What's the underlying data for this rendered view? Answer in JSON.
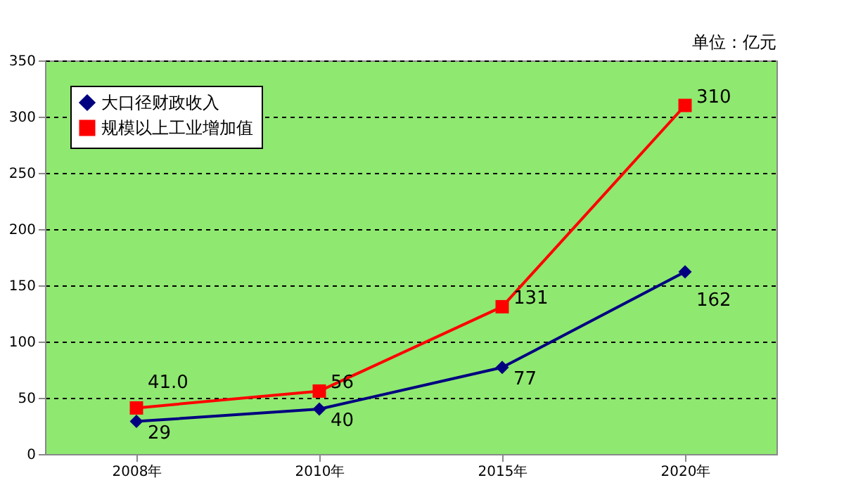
{
  "chart_data": {
    "type": "line",
    "categories": [
      "2008年",
      "2010年",
      "2015年",
      "2020年"
    ],
    "series": [
      {
        "name": "大口径财政收入",
        "color": "#000080",
        "values": [
          29,
          40,
          77,
          162
        ],
        "marker": "diamond",
        "value_labels": [
          "29",
          "40",
          "77",
          "162"
        ]
      },
      {
        "name": "规模以上工业增加值",
        "color": "#ff0000",
        "values": [
          41.0,
          56,
          131,
          310
        ],
        "marker": "square",
        "value_labels": [
          "41.0",
          "56",
          "131",
          "310"
        ]
      }
    ],
    "ylim": [
      0,
      350
    ],
    "yticks": [
      0,
      50,
      100,
      150,
      200,
      250,
      300,
      350
    ],
    "grid": "y",
    "legend": "top left",
    "line_style": "solid",
    "annotations": [
      "单位：亿元"
    ]
  }
}
